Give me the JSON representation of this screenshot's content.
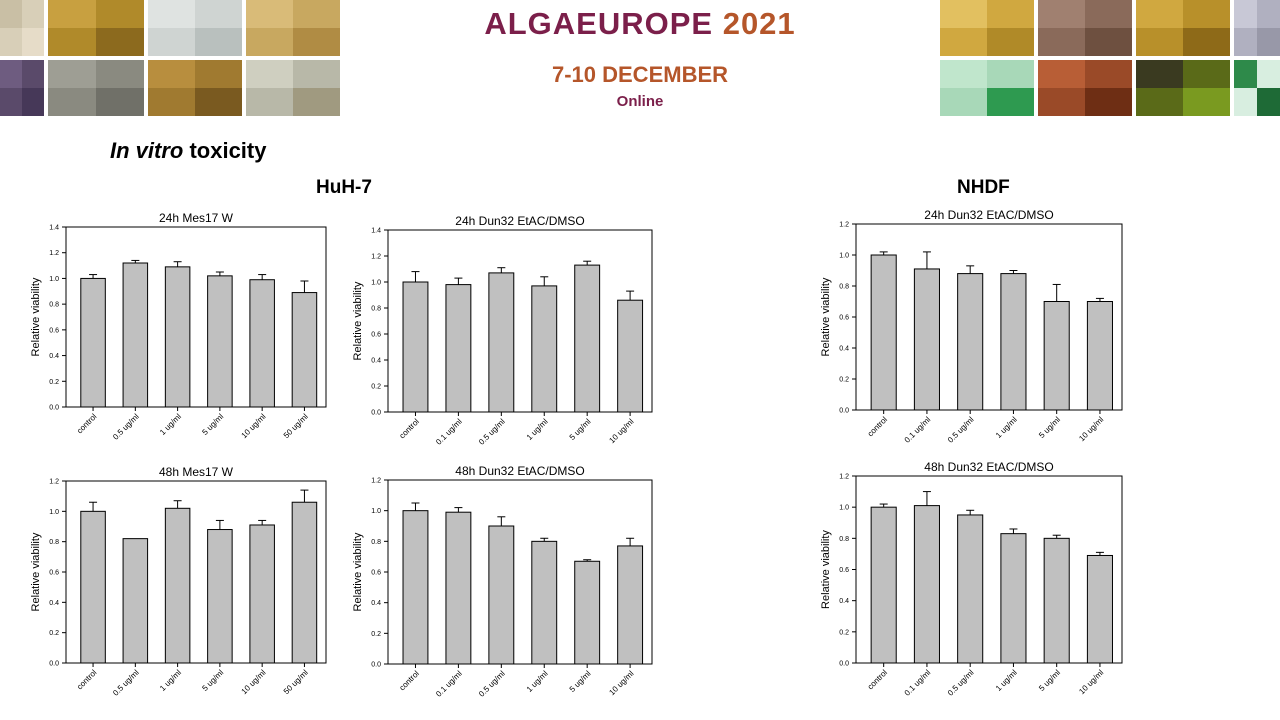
{
  "banner": {
    "title_main": "ALGAEUROPE",
    "title_year": "2021",
    "dates": "7-10 DECEMBER",
    "format": "Online"
  },
  "section": {
    "title_italic": "In vitro",
    "title_rest": " toxicity"
  },
  "groups": {
    "huh7": "HuH-7",
    "nhdf": "NHDF"
  },
  "palette": {
    "bar_fill": "#c0c0c0",
    "bar_stroke": "#000000",
    "axis": "#000000"
  },
  "chart_data": [
    {
      "type": "bar",
      "title": "24h Mes17 W",
      "ylabel": "Relative viability",
      "xlabel": "",
      "ylim": [
        0,
        1.4
      ],
      "yticks": [
        0.0,
        0.2,
        0.4,
        0.6,
        0.8,
        1.0,
        1.2,
        1.4
      ],
      "categories": [
        "control",
        "0.5 ug/ml",
        "1 ug/ml",
        "5 ug/ml",
        "10 ug/ml",
        "50 ug/ml"
      ],
      "values": [
        1.0,
        1.12,
        1.09,
        1.02,
        0.99,
        0.89
      ],
      "errors": [
        0.03,
        0.02,
        0.04,
        0.03,
        0.04,
        0.09
      ],
      "grid": false
    },
    {
      "type": "bar",
      "title": "24h Dun32 EtAC/DMSO",
      "ylabel": "Relative viability",
      "xlabel": "",
      "ylim": [
        0,
        1.4
      ],
      "yticks": [
        0.0,
        0.2,
        0.4,
        0.6,
        0.8,
        1.0,
        1.2,
        1.4
      ],
      "categories": [
        "control",
        "0.1 ug/ml",
        "0.5 ug/ml",
        "1 ug/ml",
        "5 ug/ml",
        "10 ug/ml"
      ],
      "values": [
        1.0,
        0.98,
        1.07,
        0.97,
        1.13,
        0.86
      ],
      "errors": [
        0.08,
        0.05,
        0.04,
        0.07,
        0.03,
        0.07
      ],
      "grid": false
    },
    {
      "type": "bar",
      "title": "24h Dun32 EtAC/DMSO",
      "ylabel": "Relative viability",
      "xlabel": "",
      "ylim": [
        0,
        1.2
      ],
      "yticks": [
        0.0,
        0.2,
        0.4,
        0.6,
        0.8,
        1.0,
        1.2
      ],
      "categories": [
        "control",
        "0.1 ug/ml",
        "0.5 ug/ml",
        "1 ug/ml",
        "5 ug/ml",
        "10 ug/ml"
      ],
      "values": [
        1.0,
        0.91,
        0.88,
        0.88,
        0.7,
        0.7
      ],
      "errors": [
        0.02,
        0.11,
        0.05,
        0.02,
        0.11,
        0.02
      ],
      "grid": false
    },
    {
      "type": "bar",
      "title": "48h Mes17 W",
      "ylabel": "Relative viability",
      "xlabel": "",
      "ylim": [
        0,
        1.2
      ],
      "yticks": [
        0.0,
        0.2,
        0.4,
        0.6,
        0.8,
        1.0,
        1.2
      ],
      "categories": [
        "control",
        "0.5 ug/ml",
        "1 ug/ml",
        "5 ug/ml",
        "10 ug/ml",
        "50 ug/ml"
      ],
      "values": [
        1.0,
        0.82,
        1.02,
        0.88,
        0.91,
        1.06
      ],
      "errors": [
        0.06,
        0.0,
        0.05,
        0.06,
        0.03,
        0.08
      ],
      "grid": false
    },
    {
      "type": "bar",
      "title": "48h Dun32 EtAC/DMSO",
      "ylabel": "Relative viability",
      "xlabel": "",
      "ylim": [
        0,
        1.2
      ],
      "yticks": [
        0.0,
        0.2,
        0.4,
        0.6,
        0.8,
        1.0,
        1.2
      ],
      "categories": [
        "control",
        "0.1 ug/ml",
        "0.5 ug/ml",
        "1 ug/ml",
        "5 ug/ml",
        "10 ug/ml"
      ],
      "values": [
        1.0,
        0.99,
        0.9,
        0.8,
        0.67,
        0.77
      ],
      "errors": [
        0.05,
        0.03,
        0.06,
        0.02,
        0.01,
        0.05
      ],
      "grid": false
    },
    {
      "type": "bar",
      "title": "48h Dun32 EtAC/DMSO",
      "ylabel": "Relative viability",
      "xlabel": "",
      "ylim": [
        0,
        1.2
      ],
      "yticks": [
        0.0,
        0.2,
        0.4,
        0.6,
        0.8,
        1.0,
        1.2
      ],
      "categories": [
        "control",
        "0.1 ug/ml",
        "0.5 ug/ml",
        "1 ug/ml",
        "5 ug/ml",
        "10 ug/ml"
      ],
      "values": [
        1.0,
        1.01,
        0.95,
        0.83,
        0.8,
        0.69
      ],
      "errors": [
        0.02,
        0.09,
        0.03,
        0.03,
        0.02,
        0.02
      ],
      "grid": false
    }
  ]
}
